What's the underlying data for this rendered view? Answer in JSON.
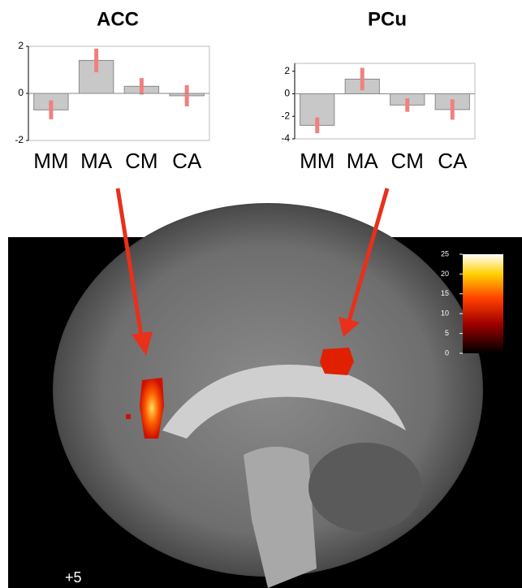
{
  "chart_data": [
    {
      "type": "bar",
      "title": "ACC",
      "categories": [
        "MM",
        "MA",
        "CM",
        "CA"
      ],
      "values": [
        -0.7,
        1.4,
        0.3,
        -0.1
      ],
      "errors": [
        0.4,
        0.5,
        0.35,
        0.45
      ],
      "color": "#c8c8c8",
      "error_color": "#f08080",
      "ylim": [
        -2,
        2
      ],
      "yticks": [
        -2,
        0,
        2
      ]
    },
    {
      "type": "bar",
      "title": "PCu",
      "categories": [
        "MM",
        "MA",
        "CM",
        "CA"
      ],
      "values": [
        -2.8,
        1.3,
        -1.0,
        -1.4
      ],
      "errors": [
        0.7,
        1.0,
        0.6,
        0.9
      ],
      "color": "#c8c8c8",
      "error_color": "#f08080",
      "ylim": [
        -4,
        2.7
      ],
      "yticks": [
        -4,
        -2,
        0,
        2
      ]
    }
  ],
  "colorbar": {
    "lim": [
      0,
      25
    ],
    "ticks": [
      0,
      5,
      10,
      15,
      20,
      25
    ]
  },
  "slice_label": "+5"
}
